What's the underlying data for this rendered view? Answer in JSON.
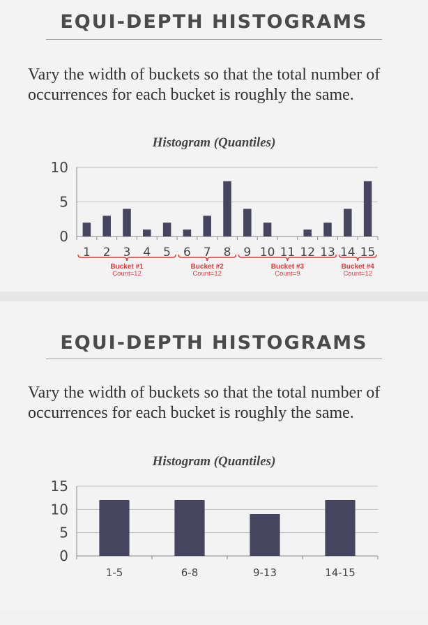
{
  "slides": [
    {
      "title": "EQUI-DEPTH HISTOGRAMS",
      "body": "Vary the width of buckets so that the total number of occurrences for each bucket is roughly the same.",
      "chart_title": "Histogram (Quantiles)"
    },
    {
      "title": "EQUI-DEPTH HISTOGRAMS",
      "body": "Vary the width of buckets so that the total number of occurrences for each bucket is roughly the same.",
      "chart_title": "Histogram (Quantiles)"
    }
  ],
  "colors": {
    "bar": "#454560",
    "bracket": "#e03a3a",
    "grid": "#bfbfbf"
  },
  "chart_data": [
    {
      "type": "bar",
      "title": "Histogram (Quantiles)",
      "categories": [
        "1",
        "2",
        "3",
        "4",
        "5",
        "6",
        "7",
        "8",
        "9",
        "10",
        "11",
        "12",
        "13",
        "14",
        "15"
      ],
      "values": [
        2,
        3,
        4,
        1,
        2,
        1,
        3,
        8,
        4,
        2,
        0,
        1,
        2,
        4,
        8
      ],
      "ylim": [
        0,
        10
      ],
      "yticks": [
        0,
        5,
        10
      ],
      "grid": true,
      "annotations": [
        {
          "label": "Bucket #1",
          "count": "Count=12",
          "from": "1",
          "to": "5"
        },
        {
          "label": "Bucket #2",
          "count": "Count=12",
          "from": "6",
          "to": "8"
        },
        {
          "label": "Bucket #3",
          "count": "Count=9",
          "from": "9",
          "to": "13"
        },
        {
          "label": "Bucket #4",
          "count": "Count=12",
          "from": "14",
          "to": "15"
        }
      ]
    },
    {
      "type": "bar",
      "title": "Histogram (Quantiles)",
      "categories": [
        "1-5",
        "6-8",
        "9-13",
        "14-15"
      ],
      "values": [
        12,
        12,
        9,
        12
      ],
      "ylim": [
        0,
        15
      ],
      "yticks": [
        0,
        5,
        10,
        15
      ],
      "grid": true
    }
  ]
}
